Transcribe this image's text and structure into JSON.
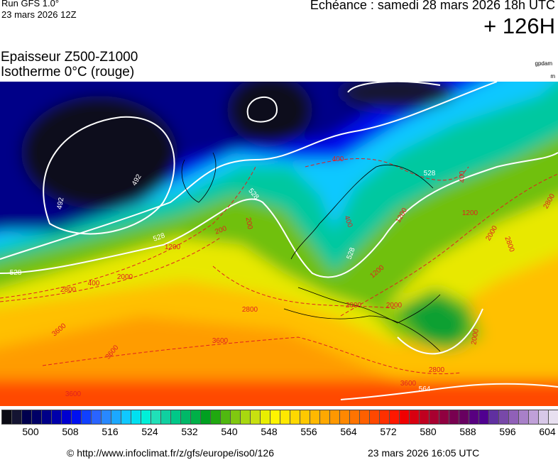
{
  "header": {
    "run": "Run GFS 1.0°",
    "run_date": "23 mars 2026 12Z",
    "echeance": "Echéance : samedi 28 mars 2026 18h UTC",
    "lead": "+ 126H",
    "title1": "Epaisseur Z500-Z1000",
    "title2": "Isotherme 0°C (rouge)",
    "unit1": "gpdam",
    "unit2": "m"
  },
  "map": {
    "thickness_labels": [
      "492",
      "492",
      "528",
      "528",
      "528",
      "528",
      "564",
      "528"
    ],
    "isotherm_labels": [
      "400",
      "400",
      "200",
      "200",
      "1200",
      "1200",
      "2800",
      "400",
      "2000",
      "2800",
      "2000",
      "2000",
      "3600",
      "3600",
      "3600",
      "3600",
      "2800",
      "3600",
      "2800",
      "2000",
      "1200",
      "2000",
      "2800",
      "400",
      "1200"
    ],
    "colors": {
      "isotherm": "#e02020",
      "thickness": "#ffffff",
      "coast": "#000000"
    }
  },
  "colorbar": {
    "labels": [
      "500",
      "508",
      "516",
      "524",
      "532",
      "540",
      "548",
      "556",
      "564",
      "572",
      "580",
      "588",
      "596",
      "604"
    ],
    "colors": [
      "#0a0a14",
      "#141432",
      "#00004e",
      "#000066",
      "#000088",
      "#0000aa",
      "#0000d0",
      "#0010f0",
      "#1040ff",
      "#2a64ff",
      "#2888ff",
      "#1ca8ff",
      "#10c8ff",
      "#00e0f0",
      "#00f0d8",
      "#20e0b8",
      "#10d0a0",
      "#00c888",
      "#00b868",
      "#00b048",
      "#00a020",
      "#20a810",
      "#50b810",
      "#80c810",
      "#a8d810",
      "#c8e010",
      "#e8ee00",
      "#fff400",
      "#ffe800",
      "#ffd800",
      "#ffc800",
      "#ffb800",
      "#ffa800",
      "#ff9800",
      "#ff8800",
      "#ff7400",
      "#ff6000",
      "#ff4800",
      "#ff3000",
      "#ff1800",
      "#f00000",
      "#d80010",
      "#c00020",
      "#a80030",
      "#900040",
      "#780050",
      "#680060",
      "#580080",
      "#500090",
      "#6030a0",
      "#7848a8",
      "#9060b8",
      "#a880c8",
      "#c0a0d8",
      "#d8c8e8",
      "#e8e0f0"
    ]
  },
  "footer": {
    "copyright": "© http://www.infoclimat.fr/z/gfs/europe/iso0/126",
    "generated": "23 mars 2026 16:05 UTC"
  }
}
